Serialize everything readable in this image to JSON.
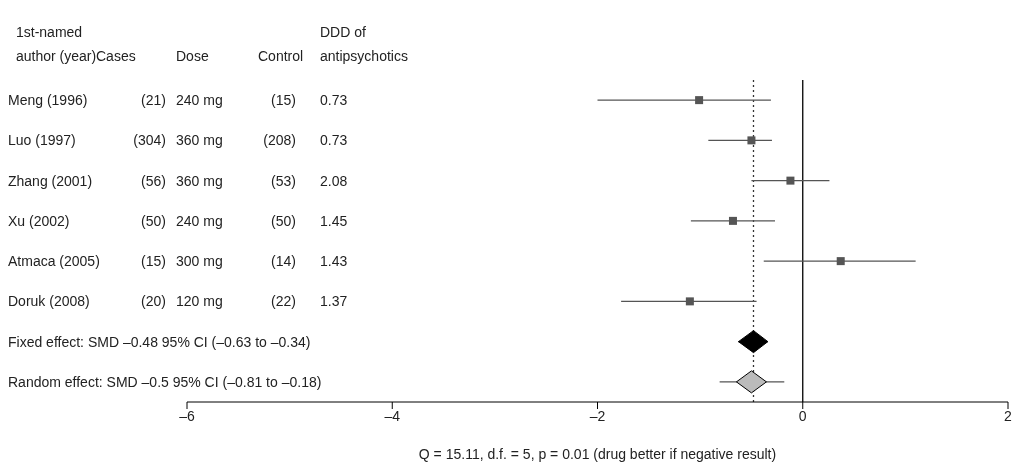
{
  "chart_data": {
    "type": "scatter",
    "orientation": "horizontal",
    "categories": [
      "Meng (1996)",
      "Luo (1997)",
      "Zhang (2001)",
      "Xu (2002)",
      "Atmaca (2005)",
      "Doruk (2008)",
      "Fixed effect: SMD –0.48 95% CI (–0.63 to –0.34)",
      "Random effect: SMD –0.5 95% CI (–0.81 to –0.18)"
    ],
    "series": [
      {
        "color": "#555555",
        "marker": "square",
        "values": [
          -1.01,
          -0.5,
          -0.12,
          -0.68,
          0.37,
          -1.1,
          null,
          null
        ],
        "errors": [
          [
            -2.0,
            -0.31
          ],
          [
            -0.92,
            -0.3
          ],
          [
            -0.5,
            0.26
          ],
          [
            -1.09,
            -0.27
          ],
          [
            -0.38,
            1.1
          ],
          [
            -1.77,
            -0.45
          ],
          null,
          null
        ]
      },
      {
        "color": "#000000",
        "marker": "diamond",
        "values": [
          null,
          null,
          null,
          null,
          null,
          null,
          -0.48,
          null
        ],
        "errors": [
          null,
          null,
          null,
          null,
          null,
          null,
          [
            -0.63,
            -0.34
          ],
          null
        ]
      },
      {
        "color": "#bbbbbb",
        "marker": "diamond",
        "values": [
          null,
          null,
          null,
          null,
          null,
          null,
          null,
          -0.5
        ],
        "errors": [
          null,
          null,
          null,
          null,
          null,
          null,
          null,
          [
            -0.81,
            -0.18
          ]
        ]
      }
    ],
    "xlim": [
      -6,
      2
    ],
    "xticks": [
      {
        "value": -6,
        "label": "–6"
      },
      {
        "value": -4,
        "label": "–4"
      },
      {
        "value": -2,
        "label": "–2"
      },
      0,
      2
    ],
    "ref_lines": [
      {
        "axis": "x",
        "value": 0,
        "color": "#000000",
        "line_style": "solid"
      },
      {
        "axis": "x",
        "value": -0.48,
        "color": "#333333",
        "line_style": "dotted"
      }
    ],
    "annotations": [
      "1st-named author (year)",
      "Cases",
      "Dose",
      "Control",
      "DDD of antipsychotics",
      "(21)",
      "240 mg",
      "(15)",
      "0.73",
      "(304)",
      "360 mg",
      "(208)",
      "0.73",
      "(56)",
      "360 mg",
      "(53)",
      "2.08",
      "(50)",
      "240 mg",
      "(50)",
      "1.45",
      "(15)",
      "300 mg",
      "(14)",
      "1.43",
      "(20)",
      "120 mg",
      "(22)",
      "1.37",
      "Q = 15.11, d.f. = 5, p = 0.01 (drug better if negative result)"
    ]
  }
}
